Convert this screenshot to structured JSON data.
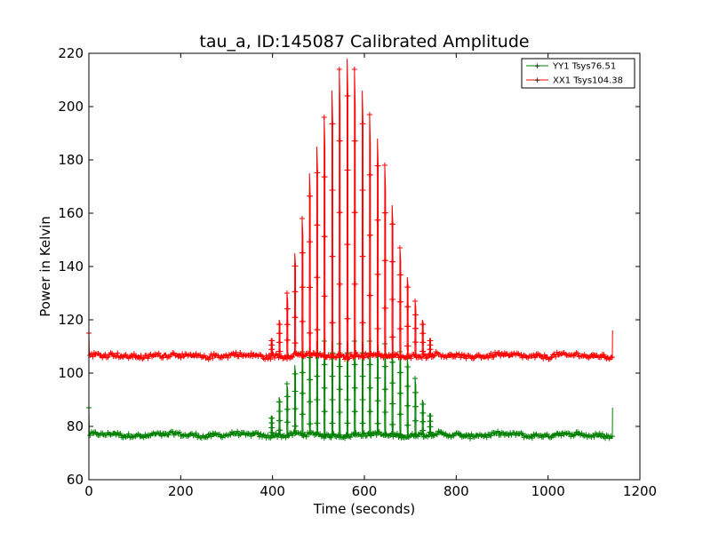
{
  "chart_data": {
    "type": "line",
    "title": "tau_a, ID:145087 Calibrated Amplitude",
    "xlabel": "Time (seconds)",
    "ylabel": "Power in Kelvin",
    "xlim": [
      0,
      1200
    ],
    "ylim": [
      60,
      220
    ],
    "xticks": [
      0,
      200,
      400,
      600,
      800,
      1000,
      1200
    ],
    "yticks": [
      60,
      80,
      100,
      120,
      140,
      160,
      180,
      200,
      220
    ],
    "xtick_labels": [
      "0",
      "200",
      "400",
      "600",
      "800",
      "1000",
      "1200"
    ],
    "ytick_labels": [
      "60",
      "80",
      "100",
      "120",
      "140",
      "160",
      "180",
      "200",
      "220"
    ],
    "grid": false,
    "legend_position": "top-right",
    "series": [
      {
        "name": "YY1 Tsys76.51",
        "color": "#008000",
        "baseline": 76.8,
        "noise": 0.8,
        "start_value": 87,
        "end_value": 87,
        "peaks_t": [
          398,
          415,
          432,
          449,
          465,
          481,
          497,
          513,
          530,
          546,
          563,
          579,
          596,
          612,
          629,
          645,
          661,
          678,
          694,
          711,
          727,
          743
        ],
        "peaks_v": [
          84,
          91,
          96,
          103,
          108,
          110,
          112,
          112,
          112,
          111,
          112,
          112,
          112,
          112,
          111,
          111,
          108,
          108,
          106,
          98,
          90,
          85
        ]
      },
      {
        "name": "XX1 Tsys104.38",
        "color": "#ff0000",
        "baseline": 106.5,
        "noise": 0.9,
        "start_value": 115,
        "end_value": 116,
        "peaks_t": [
          398,
          415,
          432,
          449,
          465,
          481,
          497,
          513,
          530,
          546,
          563,
          579,
          596,
          612,
          629,
          645,
          661,
          678,
          694,
          711,
          727,
          743
        ],
        "peaks_v": [
          113,
          120,
          130,
          145,
          158,
          175,
          185,
          196,
          206,
          214,
          218,
          214,
          206,
          197,
          188,
          178,
          163,
          147,
          136,
          127,
          120,
          113
        ]
      }
    ]
  }
}
